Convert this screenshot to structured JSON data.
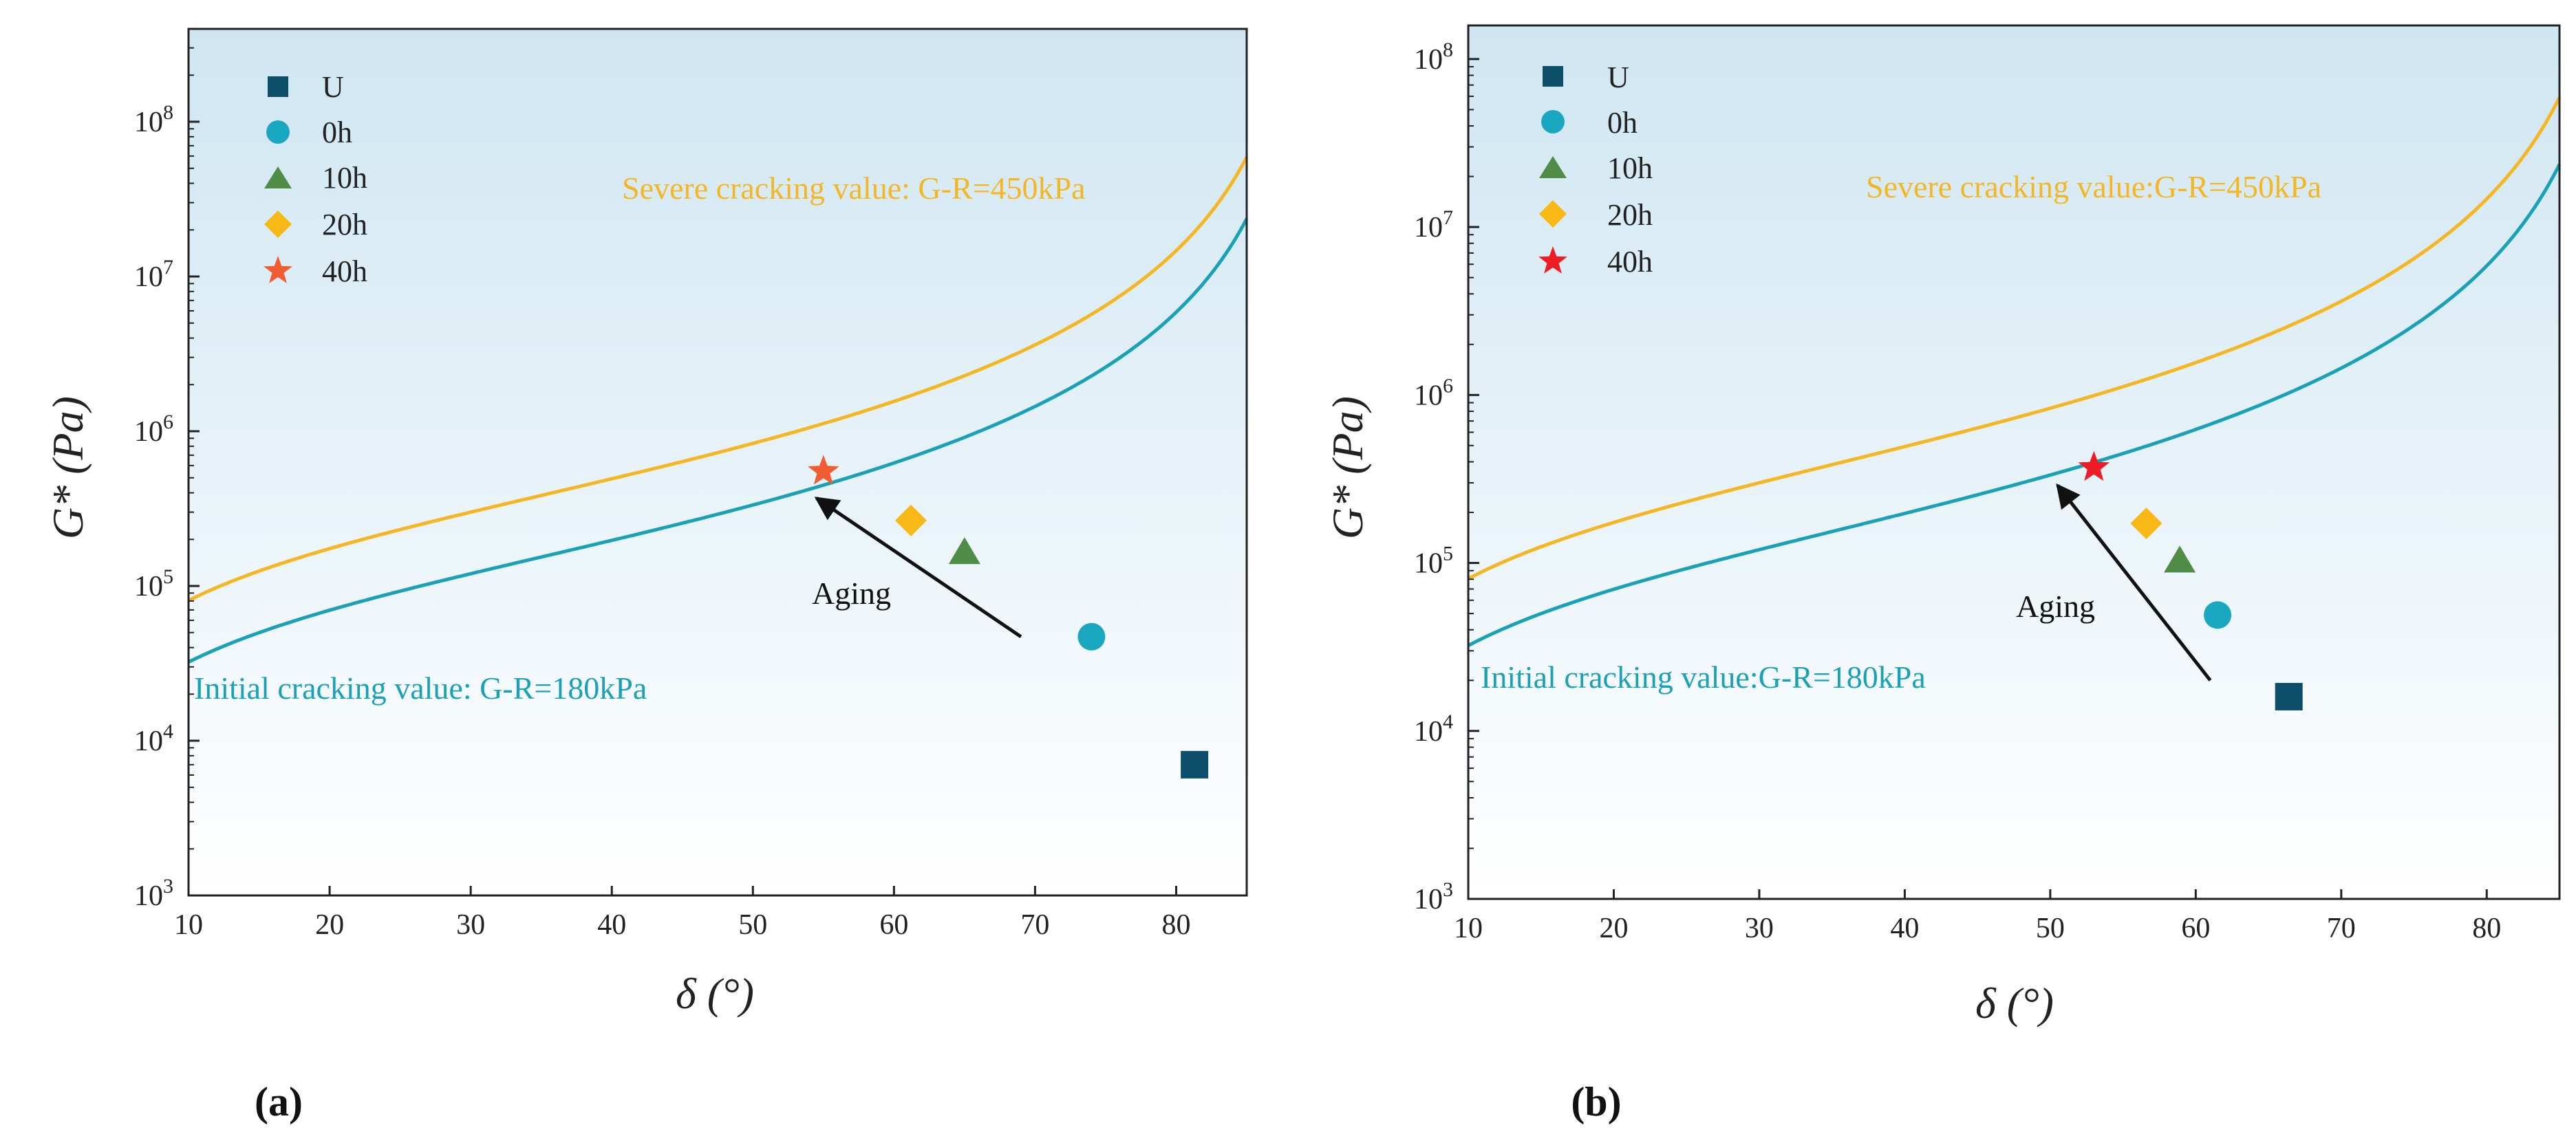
{
  "colors": {
    "bg_top": "#cfe6f2",
    "bg_bottom": "#ffffff",
    "initial_curve": "#1aa1b6",
    "severe_curve": "#f5b623",
    "U": "#0d4f6b",
    "0h": "#1aa8c0",
    "10h": "#4f8c45",
    "20h": "#f8b815",
    "40h_a": "#f25c32",
    "40h_b": "#ee1c24",
    "arrow": "#111111"
  },
  "chart_data": [
    {
      "type": "scatter",
      "panel_label": "(a)",
      "xlabel": "δ (°)",
      "ylabel": "G* (Pa)",
      "xlim": [
        10,
        85
      ],
      "ylim_log10": [
        3,
        8.6
      ],
      "x_ticks": [
        10,
        20,
        30,
        40,
        50,
        60,
        70,
        80
      ],
      "y_ticks": [
        {
          "exp": 3,
          "base": "10",
          "sup": "3"
        },
        {
          "exp": 4,
          "base": "10",
          "sup": "4"
        },
        {
          "exp": 5,
          "base": "10",
          "sup": "5"
        },
        {
          "exp": 6,
          "base": "10",
          "sup": "6"
        },
        {
          "exp": 7,
          "base": "10",
          "sup": "7"
        },
        {
          "exp": 8,
          "base": "10",
          "sup": "8"
        }
      ],
      "series": [
        {
          "name": "U",
          "marker": "square",
          "color_key": "U",
          "x": 81.3,
          "y": 7000
        },
        {
          "name": "0h",
          "marker": "circle",
          "color_key": "0h",
          "x": 74,
          "y": 47000
        },
        {
          "name": "10h",
          "marker": "triangle",
          "color_key": "10h",
          "x": 65,
          "y": 165000
        },
        {
          "name": "20h",
          "marker": "diamond",
          "color_key": "20h",
          "x": 61.2,
          "y": 265000
        },
        {
          "name": "40h",
          "marker": "star",
          "color_key": "40h_a",
          "x": 55,
          "y": 550000
        }
      ],
      "curves": [
        {
          "name": "initial",
          "gr_kpa": 180,
          "color_key": "initial_curve",
          "label": "Initial cracking value: G-R=180kPa"
        },
        {
          "name": "severe",
          "gr_kpa": 450,
          "color_key": "severe_curve",
          "label": "Severe cracking value: G-R=450kPa"
        }
      ],
      "annotation": {
        "text": "Aging",
        "arrow_from": [
          69,
          47000
        ],
        "arrow_to": [
          54.5,
          370000
        ]
      }
    },
    {
      "type": "scatter",
      "panel_label": "(b)",
      "xlabel": "δ (°)",
      "ylabel": "G* (Pa)",
      "xlim": [
        10,
        85
      ],
      "ylim_log10": [
        3,
        8.2
      ],
      "x_ticks": [
        10,
        20,
        30,
        40,
        50,
        60,
        70,
        80
      ],
      "y_ticks": [
        {
          "exp": 3,
          "base": "10",
          "sup": "3"
        },
        {
          "exp": 4,
          "base": "10",
          "sup": "4"
        },
        {
          "exp": 5,
          "base": "10",
          "sup": "5"
        },
        {
          "exp": 6,
          "base": "10",
          "sup": "6"
        },
        {
          "exp": 7,
          "base": "10",
          "sup": "7"
        },
        {
          "exp": 8,
          "base": "10",
          "sup": "8"
        }
      ],
      "series": [
        {
          "name": "U",
          "marker": "square",
          "color_key": "U",
          "x": 66.4,
          "y": 16000
        },
        {
          "name": "0h",
          "marker": "circle",
          "color_key": "0h",
          "x": 61.5,
          "y": 49000
        },
        {
          "name": "10h",
          "marker": "triangle",
          "color_key": "10h",
          "x": 58.9,
          "y": 103000
        },
        {
          "name": "20h",
          "marker": "diamond",
          "color_key": "20h",
          "x": 56.6,
          "y": 172000
        },
        {
          "name": "40h",
          "marker": "star",
          "color_key": "40h_b",
          "x": 53,
          "y": 370000
        }
      ],
      "curves": [
        {
          "name": "initial",
          "gr_kpa": 180,
          "color_key": "initial_curve",
          "label": "Initial cracking value:G-R=180kPa"
        },
        {
          "name": "severe",
          "gr_kpa": 450,
          "color_key": "severe_curve",
          "label": "Severe cracking value:G-R=450kPa"
        }
      ],
      "annotation": {
        "text": "Aging",
        "arrow_from": [
          61,
          20000
        ],
        "arrow_to": [
          50.5,
          290000
        ]
      }
    }
  ]
}
